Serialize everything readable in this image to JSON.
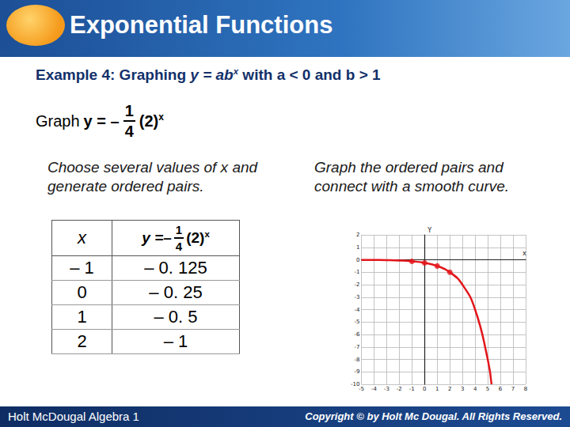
{
  "header": {
    "title": "Exponential Functions"
  },
  "subtitle": {
    "before": "Example 4: Graphing ",
    "equation": "y = ab",
    "exponent": "x",
    "after": " with a < 0 and b > 1"
  },
  "equation": {
    "lead": "Graph",
    "lhs": "y = –",
    "numerator": "1",
    "denominator": "4",
    "base": "(2)",
    "exponent": "x"
  },
  "left_text": "Choose several values of x and generate ordered pairs.",
  "right_text": "Graph the ordered pairs and connect with a smooth curve.",
  "table": {
    "header": {
      "x": "x",
      "lhs": "y =–",
      "numerator": "1",
      "denominator": "4",
      "base": "(2)",
      "exponent": "x"
    },
    "rows": [
      [
        "– 1",
        "– 0. 125"
      ],
      [
        "0",
        "– 0. 25"
      ],
      [
        "1",
        "– 0. 5"
      ],
      [
        "2",
        "– 1"
      ]
    ]
  },
  "chart_data": {
    "type": "line",
    "xlabel": "x",
    "ylabel": "Y",
    "xlim": [
      -5,
      8
    ],
    "ylim": [
      -10,
      2
    ],
    "xticks": [
      -5,
      -4,
      -3,
      -2,
      -1,
      0,
      1,
      2,
      3,
      4,
      5,
      6,
      7,
      8
    ],
    "yticks": [
      -10,
      -9,
      -8,
      -7,
      -6,
      -5,
      -4,
      -3,
      -2,
      -1,
      0,
      1,
      2
    ],
    "grid": true,
    "series": [
      {
        "type": "line",
        "color": "#e3161b",
        "line_style": "solid",
        "x": [
          -5,
          -4,
          -3,
          -2,
          -1,
          0,
          1,
          2,
          3,
          4,
          5,
          5.3
        ],
        "values": [
          -0.01,
          -0.02,
          -0.03,
          -0.06,
          -0.125,
          -0.25,
          -0.5,
          -1,
          -2,
          -4,
          -8,
          -10
        ]
      },
      {
        "type": "scatter",
        "color": "#e3161b",
        "marker": "circle",
        "x": [
          -1,
          0,
          1,
          2
        ],
        "values": [
          -0.125,
          -0.25,
          -0.5,
          -1
        ]
      }
    ]
  },
  "footer": {
    "left": "Holt McDougal Algebra 1",
    "right": "Copyright © by Holt Mc Dougal. All Rights Reserved."
  }
}
